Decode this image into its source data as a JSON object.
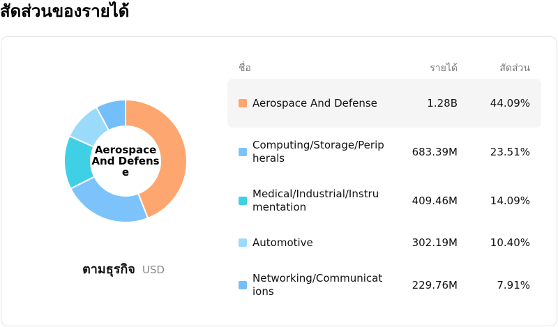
{
  "page": {
    "title": "สัดส่วนของรายได้"
  },
  "donut": {
    "center_label": "Aerospace And Defense",
    "caption": "ตามธุรกิจ",
    "unit": "USD"
  },
  "table": {
    "headers": {
      "name": "ชื่อ",
      "revenue": "รายได้",
      "share": "สัดส่วน"
    },
    "active_index": 0
  },
  "colors": {
    "Aerospace And Defense": "#fda66f",
    "Computing/Storage/Peripherals": "#7cc3fc",
    "Medical/Industrial/Instrumentation": "#40d0e6",
    "Automotive": "#9adbfb",
    "Networking/Communications": "#72bffb"
  },
  "chart_data": {
    "type": "pie",
    "title": "",
    "categories": [
      "Aerospace And Defense",
      "Computing/Storage/Peripherals",
      "Medical/Industrial/Instrumentation",
      "Automotive",
      "Networking/Communications"
    ],
    "values": [
      1.28,
      0.68339,
      0.40946,
      0.30219,
      0.22976
    ],
    "value_labels": [
      "1.28B",
      "683.39M",
      "409.46M",
      "302.19M",
      "229.76M"
    ],
    "shares": [
      44.09,
      23.51,
      14.09,
      10.4,
      7.91
    ],
    "share_labels": [
      "44.09%",
      "23.51%",
      "14.09%",
      "10.40%",
      "7.91%"
    ],
    "unit": "USD",
    "legend": "right"
  }
}
